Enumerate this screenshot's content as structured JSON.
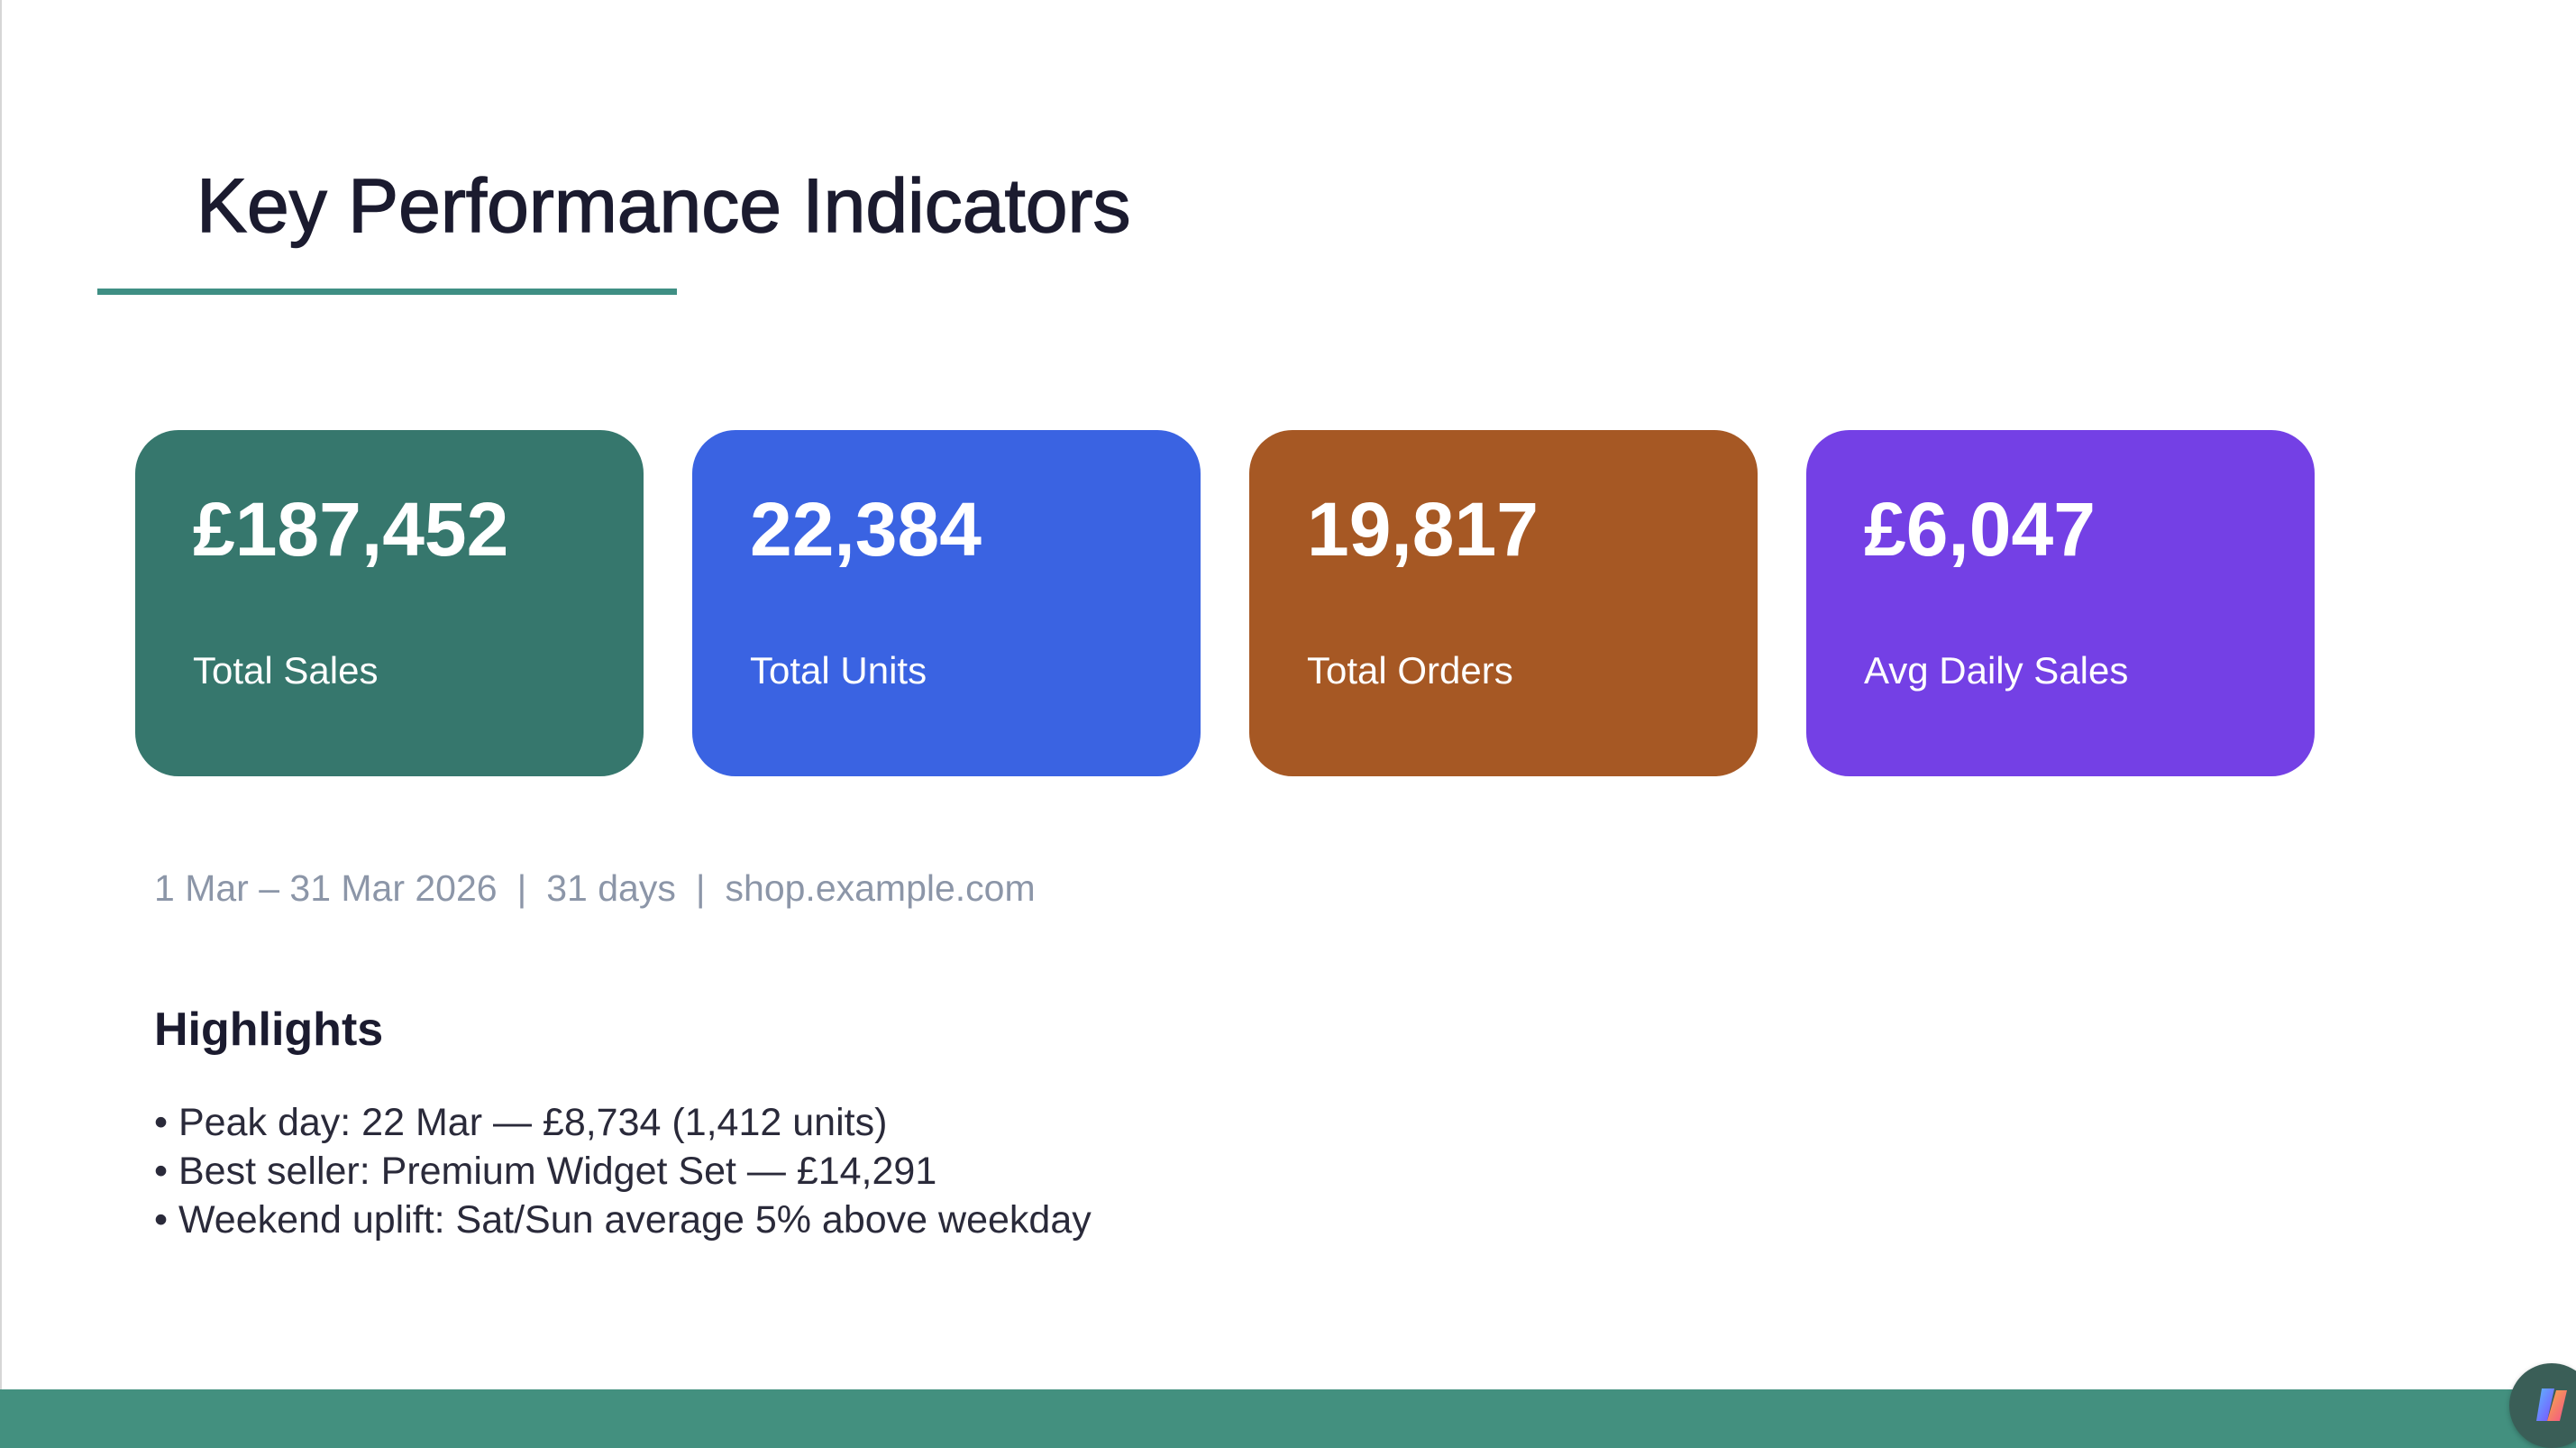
{
  "slide": {
    "title": "Key Performance Indicators"
  },
  "kpis": [
    {
      "value": "£187,452",
      "label": "Total Sales",
      "color": "#36776d"
    },
    {
      "value": "22,384",
      "label": "Total Units",
      "color": "#3a63e2"
    },
    {
      "value": "19,817",
      "label": "Total Orders",
      "color": "#a65824"
    },
    {
      "value": "£6,047",
      "label": "Avg Daily Sales",
      "color": "#7440e5"
    }
  ],
  "meta": {
    "date_range": "1 Mar – 31 Mar 2026",
    "separator": "|",
    "days": "31 days",
    "site": "shop.example.com"
  },
  "highlights": {
    "heading": "Highlights",
    "items": [
      "• Peak day: 22 Mar — £8,734 (1,412 units)",
      "• Best seller: Premium Widget Set — £14,291",
      "• Weekend uplift: Sat/Sun average 5% above weekday"
    ]
  },
  "colors": {
    "accent": "#3f8f84",
    "footer": "#43907f",
    "title_text": "#1b1b2f",
    "meta_text": "#8c96a8"
  },
  "icons": {
    "assistant": "copilot-icon"
  }
}
